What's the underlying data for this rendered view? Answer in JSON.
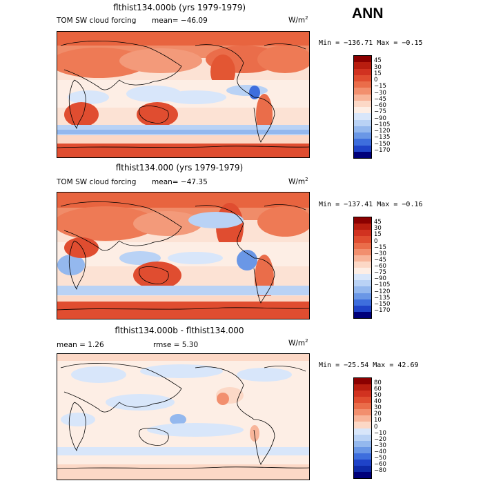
{
  "season": "ANN",
  "units_base": "W/m",
  "units_exp": "2",
  "panels": [
    {
      "title": "flthist134.000b (yrs 1979-1979)",
      "variable": "TOM SW cloud forcing",
      "mean_text": "mean= −46.09",
      "minmax_text": "Min = −136.71  Max =  −0.15",
      "colorbar": {
        "levels": [
          "45",
          "30",
          "15",
          "0",
          "−15",
          "−30",
          "−45",
          "−60",
          "−75",
          "−90",
          "−105",
          "−120",
          "−135",
          "−150",
          "−170"
        ],
        "colors": [
          "#8b0000",
          "#b81d0f",
          "#d13220",
          "#e04d30",
          "#ea6d4a",
          "#f28f6e",
          "#f8b59a",
          "#fcd8c6",
          "#fdeee5",
          "#d8e6fa",
          "#b9d2f5",
          "#94b8ee",
          "#6a97e6",
          "#3e6edd",
          "#1f43c8",
          "#00007a"
        ]
      }
    },
    {
      "title": "flthist134.000 (yrs 1979-1979)",
      "variable": "TOM SW cloud forcing",
      "mean_text": "mean= −47.35",
      "minmax_text": "Min = −137.41  Max =  −0.16",
      "colorbar": {
        "levels": [
          "45",
          "30",
          "15",
          "0",
          "−15",
          "−30",
          "−45",
          "−60",
          "−75",
          "−90",
          "−105",
          "−120",
          "−135",
          "−150",
          "−170"
        ],
        "colors": [
          "#8b0000",
          "#b81d0f",
          "#d13220",
          "#e04d30",
          "#ea6d4a",
          "#f28f6e",
          "#f8b59a",
          "#fcd8c6",
          "#fdeee5",
          "#d8e6fa",
          "#b9d2f5",
          "#94b8ee",
          "#6a97e6",
          "#3e6edd",
          "#1f43c8",
          "#00007a"
        ]
      }
    },
    {
      "title": "flthist134.000b - flthist134.000",
      "mean_text": "mean =    1.26",
      "rmse_text": "rmse =    5.30",
      "minmax_text": "Min = −25.54  Max =  42.69",
      "colorbar": {
        "levels": [
          "80",
          "60",
          "50",
          "40",
          "30",
          "20",
          "10",
          "0",
          "−10",
          "−20",
          "−30",
          "−40",
          "−50",
          "−60",
          "−80"
        ],
        "colors": [
          "#8b0000",
          "#b81d0f",
          "#d13220",
          "#e04d30",
          "#ea6d4a",
          "#f28f6e",
          "#f8b59a",
          "#fcd8c6",
          "#d8e6fa",
          "#b9d2f5",
          "#94b8ee",
          "#6a97e6",
          "#3e6edd",
          "#1f43c8",
          "#0e2aa8",
          "#00007a"
        ]
      }
    }
  ],
  "chart_data": {
    "type": "heatmap",
    "title": "ANN",
    "panels": [
      {
        "title": "flthist134.000b (yrs 1979-1979)",
        "variable": "TOM SW cloud forcing",
        "units": "W/m2",
        "mean": -46.09,
        "min": -136.71,
        "max": -0.15,
        "contour_levels": [
          45,
          30,
          15,
          0,
          -15,
          -30,
          -45,
          -60,
          -75,
          -90,
          -105,
          -120,
          -135,
          -150,
          -170
        ]
      },
      {
        "title": "flthist134.000 (yrs 1979-1979)",
        "variable": "TOM SW cloud forcing",
        "units": "W/m2",
        "mean": -47.35,
        "min": -137.41,
        "max": -0.16,
        "contour_levels": [
          45,
          30,
          15,
          0,
          -15,
          -30,
          -45,
          -60,
          -75,
          -90,
          -105,
          -120,
          -135,
          -150,
          -170
        ]
      },
      {
        "title": "flthist134.000b - flthist134.000",
        "units": "W/m2",
        "mean": 1.26,
        "rmse": 5.3,
        "min": -25.54,
        "max": 42.69,
        "contour_levels": [
          80,
          60,
          50,
          40,
          30,
          20,
          10,
          0,
          -10,
          -20,
          -30,
          -40,
          -50,
          -60,
          -80
        ]
      }
    ]
  }
}
